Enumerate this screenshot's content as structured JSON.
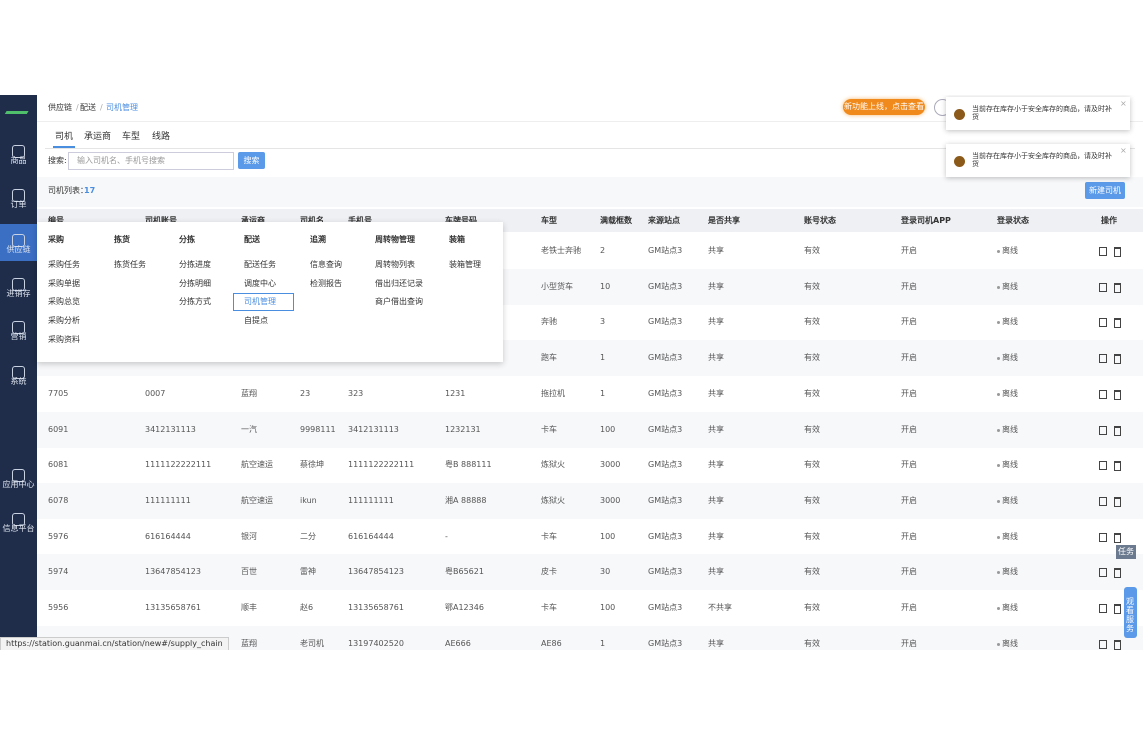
{
  "sidebar": {
    "items": [
      "商品",
      "订单",
      "供应链",
      "进销存",
      "营销",
      "系统",
      "应用中心",
      "信息平台"
    ],
    "active": 2
  },
  "header": {
    "breadcrumb": [
      "供应链",
      "配送",
      "司机管理"
    ],
    "banner": "新功能上线，点击查看"
  },
  "tabs": [
    "司机",
    "承运商",
    "车型",
    "线路"
  ],
  "search": {
    "label": "搜索:",
    "placeholder": "输入司机名、手机号搜索",
    "button": "搜索"
  },
  "list": {
    "label": "司机列表：",
    "count": 17,
    "new_button": "新建司机"
  },
  "table": {
    "columns": [
      "编号",
      "司机账号",
      "承运商",
      "司机名",
      "手机号",
      "车牌号码",
      "车型",
      "满载框数",
      "来源站点",
      "是否共享",
      "账号状态",
      "登录司机APP",
      "登录状态",
      "操作"
    ],
    "rows": [
      [
        null,
        null,
        null,
        null,
        null,
        null,
        "老铁士奔驰",
        "2",
        "GM站点3",
        "共享",
        "有效",
        "开启",
        "离线"
      ],
      [
        null,
        null,
        null,
        null,
        null,
        null,
        "小型货车",
        "10",
        "GM站点3",
        "共享",
        "有效",
        "开启",
        "离线"
      ],
      [
        null,
        null,
        null,
        null,
        null,
        null,
        "奔驰",
        "3",
        "GM站点3",
        "共享",
        "有效",
        "开启",
        "离线"
      ],
      [
        null,
        null,
        null,
        null,
        null,
        null,
        "跑车",
        "1",
        "GM站点3",
        "共享",
        "有效",
        "开启",
        "离线"
      ],
      [
        "7705",
        "0007",
        "蓝翔",
        "23",
        "323",
        "1231",
        "拖拉机",
        "1",
        "GM站点3",
        "共享",
        "有效",
        "开启",
        "离线"
      ],
      [
        "6091",
        "3412131113",
        "一汽",
        "9998111",
        "3412131113",
        "1232131",
        "卡车",
        "100",
        "GM站点3",
        "共享",
        "有效",
        "开启",
        "离线"
      ],
      [
        "6081",
        "1111122222111",
        "航空速运",
        "蔡徐坤",
        "1111122222111",
        "粤B 888111",
        "炼狱火",
        "3000",
        "GM站点3",
        "共享",
        "有效",
        "开启",
        "离线"
      ],
      [
        "6078",
        "111111111",
        "航空速运",
        "ikun",
        "111111111",
        "湘A 88888",
        "炼狱火",
        "3000",
        "GM站点3",
        "共享",
        "有效",
        "开启",
        "离线"
      ],
      [
        "5976",
        "616164444",
        "银河",
        "二分",
        "616164444",
        "-",
        "卡车",
        "100",
        "GM站点3",
        "共享",
        "有效",
        "开启",
        "离线"
      ],
      [
        "5974",
        "13647854123",
        "百世",
        "雷神",
        "13647854123",
        "粤B65621",
        "皮卡",
        "30",
        "GM站点3",
        "共享",
        "有效",
        "开启",
        "离线"
      ],
      [
        "5956",
        "13135658761",
        "顺丰",
        "赵6",
        "13135658761",
        "鄂A12346",
        "卡车",
        "100",
        "GM站点3",
        "不共享",
        "有效",
        "开启",
        "离线"
      ],
      [
        null,
        null,
        "蓝翔",
        "老司机",
        "13197402520",
        "AE666",
        "AE86",
        "1",
        "GM站点3",
        "共享",
        "有效",
        "开启",
        "离线"
      ]
    ]
  },
  "menu": {
    "columns": [
      {
        "title": "采购",
        "items": [
          "采购任务",
          "采购单据",
          "采购总览",
          "采购分析",
          "采购资料"
        ]
      },
      {
        "title": "拣货",
        "items": [
          "拣货任务"
        ]
      },
      {
        "title": "分拣",
        "items": [
          "分拣进度",
          "分拣明细",
          "分拣方式"
        ]
      },
      {
        "title": "配送",
        "items": [
          "配送任务",
          "调度中心",
          "司机管理",
          "自提点"
        ]
      },
      {
        "title": "追溯",
        "items": [
          "信息查询",
          "检测报告"
        ]
      },
      {
        "title": "周转物管理",
        "items": [
          "周转物列表",
          "借出归还记录",
          "商户借出查询"
        ]
      },
      {
        "title": "装箱",
        "items": [
          "装箱管理"
        ]
      }
    ],
    "active_column": 3,
    "active_item": 2
  },
  "notifications": [
    "当前存在库存小于安全库存的商品，请及时补货",
    "当前存在库存小于安全库存的商品，请及时补货"
  ],
  "side_tabs": {
    "task": "任务",
    "service": "观看服务"
  },
  "status_url": "https://station.guanmai.cn/station/new#/supply_chain"
}
